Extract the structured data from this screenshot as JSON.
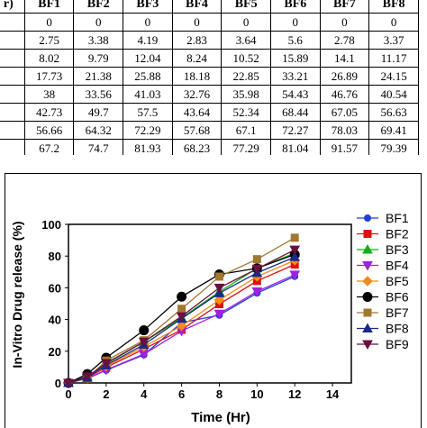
{
  "table": {
    "header": [
      "r)",
      "BF1",
      "BF2",
      "BF3",
      "BF4",
      "BF5",
      "BF6",
      "BF7",
      "BF8"
    ],
    "rows": [
      [
        "",
        "0",
        "0",
        "0",
        "0",
        "0",
        "0",
        "0",
        "0"
      ],
      [
        "",
        "2.75",
        "3.38",
        "4.19",
        "2.83",
        "3.64",
        "5.6",
        "2.78",
        "3.37"
      ],
      [
        "",
        "8.02",
        "9.79",
        "12.04",
        "8.24",
        "10.52",
        "15.89",
        "14.1",
        "11.17"
      ],
      [
        "",
        "17.73",
        "21.38",
        "25.88",
        "18.18",
        "22.85",
        "33.21",
        "26.89",
        "24.15"
      ],
      [
        "",
        "38",
        "33.56",
        "41.03",
        "32.76",
        "35.98",
        "54.43",
        "46.76",
        "40.54"
      ],
      [
        "",
        "42.73",
        "49.7",
        "57.5",
        "43.64",
        "52.34",
        "68.44",
        "67.05",
        "56.63"
      ],
      [
        "",
        "56.66",
        "64.32",
        "72.29",
        "57.68",
        "67.1",
        "72.27",
        "78.03",
        "69.41"
      ],
      [
        "",
        "67.2",
        "74.7",
        "81.93",
        "68.23",
        "77.29",
        "81.04",
        "91.57",
        "79.39"
      ]
    ]
  },
  "chart_data": {
    "type": "line",
    "xlabel": "Time (Hr)",
    "ylabel": "In-Vitro Drug release (%)",
    "xlim": [
      0,
      15
    ],
    "ylim": [
      0,
      100
    ],
    "xticks": [
      0,
      2,
      4,
      6,
      8,
      10,
      12,
      14
    ],
    "yticks": [
      0,
      20,
      40,
      60,
      80,
      100
    ],
    "legend_position": "right",
    "x": [
      0,
      1,
      2,
      4,
      6,
      8,
      10,
      12
    ],
    "series": [
      {
        "name": "BF1",
        "color": "#1f3fd6",
        "marker": "circle",
        "values": [
          0,
          2.75,
          8.02,
          17.73,
          38,
          42.73,
          56.66,
          67.2
        ]
      },
      {
        "name": "BF2",
        "color": "#e01010",
        "marker": "square",
        "values": [
          0,
          3.38,
          9.79,
          21.38,
          33.56,
          49.7,
          64.32,
          74.7
        ]
      },
      {
        "name": "BF3",
        "color": "#10b010",
        "marker": "triangle-up",
        "values": [
          0,
          4.19,
          12.04,
          25.88,
          41.03,
          57.5,
          72.29,
          81.93
        ]
      },
      {
        "name": "BF4",
        "color": "#a020e0",
        "marker": "triangle-down",
        "values": [
          0,
          2.83,
          8.24,
          18.18,
          32.76,
          43.64,
          57.68,
          68.23
        ]
      },
      {
        "name": "BF5",
        "color": "#f08c1a",
        "marker": "diamond",
        "values": [
          0,
          3.64,
          10.52,
          22.85,
          35.98,
          52.34,
          67.1,
          77.29
        ]
      },
      {
        "name": "BF6",
        "color": "#000000",
        "marker": "circle-big",
        "values": [
          0,
          5.6,
          15.89,
          33.21,
          54.43,
          68.44,
          72.27,
          81.04
        ]
      },
      {
        "name": "BF7",
        "color": "#a07830",
        "marker": "square",
        "values": [
          0,
          2.78,
          14.1,
          26.89,
          46.76,
          67.05,
          78.03,
          91.57
        ]
      },
      {
        "name": "BF8",
        "color": "#1a2a8a",
        "marker": "triangle-up",
        "values": [
          0,
          3.37,
          11.17,
          24.15,
          40.54,
          56.63,
          69.41,
          79.39
        ]
      },
      {
        "name": "BF9",
        "color": "#6a1040",
        "marker": "triangle-down",
        "values": [
          0,
          4.1,
          12.5,
          26.0,
          42.0,
          60.0,
          72.0,
          84.0
        ]
      }
    ]
  }
}
